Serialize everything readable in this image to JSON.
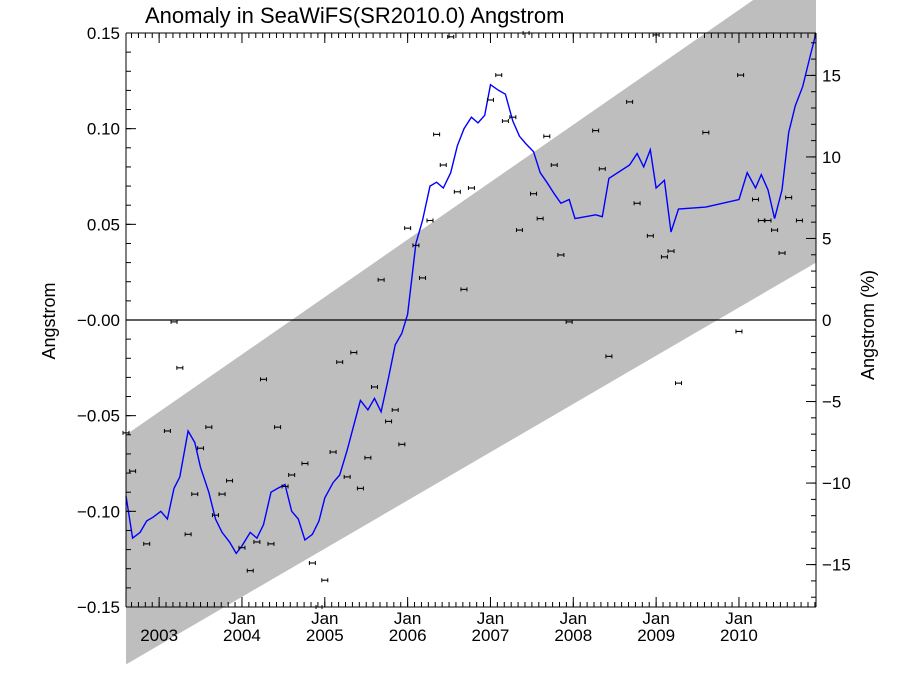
{
  "chart_data": {
    "type": "scatter",
    "title": "Anomaly in SeaWiFS(SR2010.0) Angstrom",
    "ylabel": "Angstrom",
    "ylabel_right": "Angstrom (%)",
    "xlim": [
      2002.6,
      2010.93
    ],
    "ylim": [
      -0.15,
      0.15
    ],
    "ylim_right_pct": [
      -17.6,
      17.6
    ],
    "x_ticks": [
      {
        "value": 2003.0,
        "month": "",
        "year": "2003"
      },
      {
        "value": 2004.0,
        "month": "Jan",
        "year": "2004"
      },
      {
        "value": 2005.0,
        "month": "Jan",
        "year": "2005"
      },
      {
        "value": 2006.0,
        "month": "Jan",
        "year": "2006"
      },
      {
        "value": 2007.0,
        "month": "Jan",
        "year": "2007"
      },
      {
        "value": 2008.0,
        "month": "Jan",
        "year": "2008"
      },
      {
        "value": 2009.0,
        "month": "Jan",
        "year": "2009"
      },
      {
        "value": 2010.0,
        "month": "Jan",
        "year": "2010"
      }
    ],
    "y_ticks_left": [
      {
        "value": 0.15,
        "label": "0.15"
      },
      {
        "value": 0.1,
        "label": "0.10"
      },
      {
        "value": 0.05,
        "label": "0.05"
      },
      {
        "value": 0.0,
        "label": "−0.00"
      },
      {
        "value": -0.05,
        "label": "−0.05"
      },
      {
        "value": -0.1,
        "label": "−0.10"
      },
      {
        "value": -0.15,
        "label": "−0.15"
      }
    ],
    "y_ticks_right": [
      {
        "value": 15,
        "label": "15"
      },
      {
        "value": 10,
        "label": "10"
      },
      {
        "value": 5,
        "label": "5"
      },
      {
        "value": 0,
        "label": "0"
      },
      {
        "value": -5,
        "label": "−5"
      },
      {
        "value": -10,
        "label": "−10"
      },
      {
        "value": -15,
        "label": "−15"
      }
    ],
    "band": {
      "start": {
        "x": 2002.6,
        "upper": -0.06,
        "lower": -0.18
      },
      "end": {
        "x": 2010.93,
        "upper": 0.19,
        "lower": 0.03
      },
      "color": "#bebebe"
    },
    "zero_line": 0.0,
    "points": [
      {
        "x": 2002.6,
        "y": -0.059
      },
      {
        "x": 2002.68,
        "y": -0.079
      },
      {
        "x": 2002.85,
        "y": -0.117
      },
      {
        "x": 2003.1,
        "y": -0.058
      },
      {
        "x": 2003.18,
        "y": -0.001
      },
      {
        "x": 2003.25,
        "y": -0.025
      },
      {
        "x": 2003.35,
        "y": -0.112
      },
      {
        "x": 2003.43,
        "y": -0.091
      },
      {
        "x": 2003.5,
        "y": -0.067
      },
      {
        "x": 2003.6,
        "y": -0.056
      },
      {
        "x": 2003.68,
        "y": -0.102
      },
      {
        "x": 2003.76,
        "y": -0.091
      },
      {
        "x": 2003.85,
        "y": -0.084
      },
      {
        "x": 2004.0,
        "y": -0.119
      },
      {
        "x": 2004.1,
        "y": -0.131
      },
      {
        "x": 2004.18,
        "y": -0.116
      },
      {
        "x": 2004.26,
        "y": -0.031
      },
      {
        "x": 2004.35,
        "y": -0.117
      },
      {
        "x": 2004.43,
        "y": -0.056
      },
      {
        "x": 2004.52,
        "y": -0.087
      },
      {
        "x": 2004.6,
        "y": -0.081
      },
      {
        "x": 2004.76,
        "y": -0.075
      },
      {
        "x": 2004.85,
        "y": -0.127
      },
      {
        "x": 2004.93,
        "y": -0.15
      },
      {
        "x": 2005.0,
        "y": -0.136
      },
      {
        "x": 2005.1,
        "y": -0.069
      },
      {
        "x": 2005.18,
        "y": -0.022
      },
      {
        "x": 2005.27,
        "y": -0.082
      },
      {
        "x": 2005.35,
        "y": -0.017
      },
      {
        "x": 2005.43,
        "y": -0.088
      },
      {
        "x": 2005.52,
        "y": -0.072
      },
      {
        "x": 2005.6,
        "y": -0.035
      },
      {
        "x": 2005.68,
        "y": 0.021
      },
      {
        "x": 2005.77,
        "y": -0.053
      },
      {
        "x": 2005.85,
        "y": -0.047
      },
      {
        "x": 2005.93,
        "y": -0.065
      },
      {
        "x": 2006.0,
        "y": 0.048
      },
      {
        "x": 2006.1,
        "y": 0.039
      },
      {
        "x": 2006.18,
        "y": 0.022
      },
      {
        "x": 2006.27,
        "y": 0.052
      },
      {
        "x": 2006.35,
        "y": 0.097
      },
      {
        "x": 2006.43,
        "y": 0.081
      },
      {
        "x": 2006.52,
        "y": 0.148
      },
      {
        "x": 2006.6,
        "y": 0.067
      },
      {
        "x": 2006.68,
        "y": 0.016
      },
      {
        "x": 2006.77,
        "y": 0.069
      },
      {
        "x": 2007.0,
        "y": 0.115
      },
      {
        "x": 2007.1,
        "y": 0.128
      },
      {
        "x": 2007.18,
        "y": 0.104
      },
      {
        "x": 2007.27,
        "y": 0.106
      },
      {
        "x": 2007.35,
        "y": 0.047
      },
      {
        "x": 2007.43,
        "y": 0.15
      },
      {
        "x": 2007.52,
        "y": 0.066
      },
      {
        "x": 2007.6,
        "y": 0.053
      },
      {
        "x": 2007.68,
        "y": 0.096
      },
      {
        "x": 2007.77,
        "y": 0.081
      },
      {
        "x": 2007.85,
        "y": 0.034
      },
      {
        "x": 2007.95,
        "y": -0.001
      },
      {
        "x": 2008.27,
        "y": 0.099
      },
      {
        "x": 2008.35,
        "y": 0.079
      },
      {
        "x": 2008.43,
        "y": -0.019
      },
      {
        "x": 2008.68,
        "y": 0.114
      },
      {
        "x": 2008.77,
        "y": 0.061
      },
      {
        "x": 2008.93,
        "y": 0.044
      },
      {
        "x": 2009.0,
        "y": 0.149
      },
      {
        "x": 2009.1,
        "y": 0.033
      },
      {
        "x": 2009.18,
        "y": 0.036
      },
      {
        "x": 2009.27,
        "y": -0.033
      },
      {
        "x": 2009.6,
        "y": 0.098
      },
      {
        "x": 2010.0,
        "y": -0.006
      },
      {
        "x": 2010.02,
        "y": 0.128
      },
      {
        "x": 2010.2,
        "y": 0.063
      },
      {
        "x": 2010.27,
        "y": 0.052
      },
      {
        "x": 2010.35,
        "y": 0.052
      },
      {
        "x": 2010.43,
        "y": 0.047
      },
      {
        "x": 2010.52,
        "y": 0.035
      },
      {
        "x": 2010.6,
        "y": 0.064
      },
      {
        "x": 2010.73,
        "y": 0.052
      }
    ],
    "smoothed_line": {
      "color": "#0000ff",
      "points": [
        [
          2002.6,
          -0.092
        ],
        [
          2002.68,
          -0.114
        ],
        [
          2002.77,
          -0.111
        ],
        [
          2002.85,
          -0.105
        ],
        [
          2002.93,
          -0.103
        ],
        [
          2003.02,
          -0.1
        ],
        [
          2003.1,
          -0.104
        ],
        [
          2003.18,
          -0.088
        ],
        [
          2003.25,
          -0.082
        ],
        [
          2003.35,
          -0.058
        ],
        [
          2003.43,
          -0.064
        ],
        [
          2003.5,
          -0.077
        ],
        [
          2003.6,
          -0.09
        ],
        [
          2003.68,
          -0.104
        ],
        [
          2003.76,
          -0.111
        ],
        [
          2003.85,
          -0.116
        ],
        [
          2003.93,
          -0.122
        ],
        [
          2004.0,
          -0.118
        ],
        [
          2004.1,
          -0.111
        ],
        [
          2004.18,
          -0.114
        ],
        [
          2004.26,
          -0.107
        ],
        [
          2004.35,
          -0.09
        ],
        [
          2004.43,
          -0.088
        ],
        [
          2004.52,
          -0.086
        ],
        [
          2004.6,
          -0.1
        ],
        [
          2004.68,
          -0.104
        ],
        [
          2004.76,
          -0.115
        ],
        [
          2004.85,
          -0.112
        ],
        [
          2004.93,
          -0.105
        ],
        [
          2005.0,
          -0.093
        ],
        [
          2005.1,
          -0.085
        ],
        [
          2005.18,
          -0.081
        ],
        [
          2005.27,
          -0.068
        ],
        [
          2005.35,
          -0.055
        ],
        [
          2005.43,
          -0.042
        ],
        [
          2005.52,
          -0.047
        ],
        [
          2005.6,
          -0.041
        ],
        [
          2005.68,
          -0.048
        ],
        [
          2005.77,
          -0.03
        ],
        [
          2005.85,
          -0.013
        ],
        [
          2005.93,
          -0.007
        ],
        [
          2006.0,
          0.003
        ],
        [
          2006.1,
          0.04
        ],
        [
          2006.18,
          0.052
        ],
        [
          2006.27,
          0.07
        ],
        [
          2006.35,
          0.072
        ],
        [
          2006.43,
          0.069
        ],
        [
          2006.52,
          0.077
        ],
        [
          2006.6,
          0.091
        ],
        [
          2006.68,
          0.1
        ],
        [
          2006.77,
          0.106
        ],
        [
          2006.85,
          0.103
        ],
        [
          2006.93,
          0.107
        ],
        [
          2007.0,
          0.123
        ],
        [
          2007.1,
          0.12
        ],
        [
          2007.18,
          0.118
        ],
        [
          2007.27,
          0.104
        ],
        [
          2007.35,
          0.096
        ],
        [
          2007.43,
          0.092
        ],
        [
          2007.52,
          0.088
        ],
        [
          2007.6,
          0.077
        ],
        [
          2007.68,
          0.072
        ],
        [
          2007.77,
          0.066
        ],
        [
          2007.85,
          0.061
        ],
        [
          2007.95,
          0.063
        ],
        [
          2008.02,
          0.053
        ],
        [
          2008.27,
          0.055
        ],
        [
          2008.35,
          0.054
        ],
        [
          2008.43,
          0.074
        ],
        [
          2008.68,
          0.081
        ],
        [
          2008.77,
          0.087
        ],
        [
          2008.85,
          0.08
        ],
        [
          2008.93,
          0.089
        ],
        [
          2009.0,
          0.069
        ],
        [
          2009.1,
          0.073
        ],
        [
          2009.18,
          0.046
        ],
        [
          2009.27,
          0.058
        ],
        [
          2009.6,
          0.059
        ],
        [
          2010.0,
          0.063
        ],
        [
          2010.1,
          0.077
        ],
        [
          2010.2,
          0.069
        ],
        [
          2010.27,
          0.076
        ],
        [
          2010.35,
          0.068
        ],
        [
          2010.43,
          0.053
        ],
        [
          2010.52,
          0.068
        ],
        [
          2010.6,
          0.098
        ],
        [
          2010.68,
          0.112
        ],
        [
          2010.77,
          0.122
        ],
        [
          2010.86,
          0.138
        ],
        [
          2010.93,
          0.15
        ]
      ]
    }
  }
}
